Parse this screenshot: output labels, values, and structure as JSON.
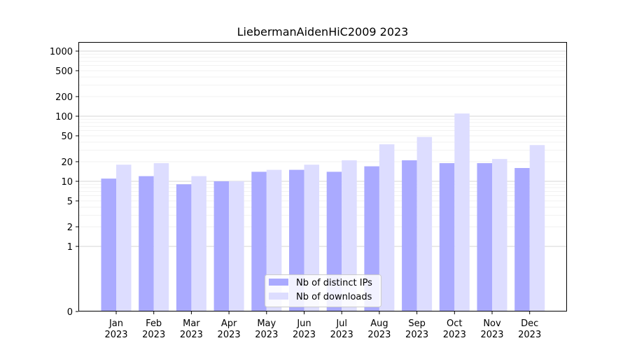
{
  "chart_data": {
    "type": "bar",
    "title": "LiebermanAidenHiC2009 2023",
    "xlabel": "",
    "ylabel": "",
    "yscale": "symlog",
    "ylim": [
      0,
      1200
    ],
    "grid": "horizontal",
    "legend_position": "bottom-center",
    "categories": [
      "Jan\n2023",
      "Feb\n2023",
      "Mar\n2023",
      "Apr\n2023",
      "May\n2023",
      "Jun\n2023",
      "Jul\n2023",
      "Aug\n2023",
      "Sep\n2023",
      "Oct\n2023",
      "Nov\n2023",
      "Dec\n2023"
    ],
    "yticks": [
      0,
      1,
      2,
      5,
      10,
      20,
      50,
      100,
      200,
      500,
      1000
    ],
    "ytick_labels": [
      "0",
      "1",
      "2",
      "5",
      "10",
      "20",
      "50",
      "100",
      "200",
      "500",
      "1000"
    ],
    "series": [
      {
        "name": "Nb of distinct IPs",
        "color": "#aaaaff",
        "values": [
          11,
          12,
          9,
          10,
          14,
          15,
          14,
          17,
          21,
          19,
          19,
          16
        ]
      },
      {
        "name": "Nb of downloads",
        "color": "#ddddff",
        "values": [
          18,
          19,
          12,
          10,
          15,
          18,
          21,
          37,
          48,
          110,
          22,
          36
        ]
      }
    ]
  }
}
